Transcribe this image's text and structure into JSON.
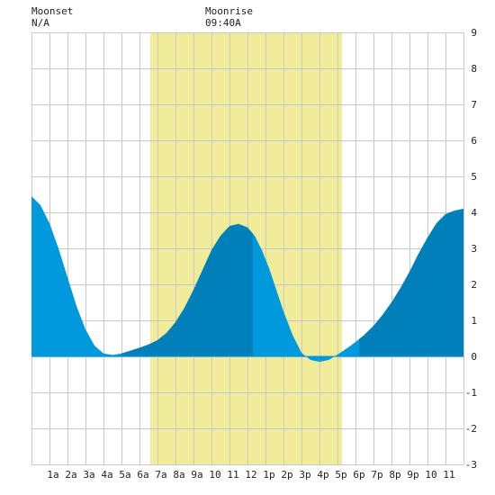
{
  "header": {
    "moonset_label": "Moonset",
    "moonset_value": "N/A",
    "moonrise_label": "Moonrise",
    "moonrise_value": "09:40A"
  },
  "colors": {
    "background": "#ffffff",
    "grid": "#c8c8c8",
    "daylight": "#f0ec9a",
    "tide_fill": "#0099dd",
    "tide_rising_fill": "#0080bb",
    "zero_line": "#0099dd"
  },
  "chart_data": {
    "type": "area",
    "title": "",
    "xlabel": "",
    "ylabel": "",
    "xlim": [
      0,
      24
    ],
    "ylim": [
      -3,
      9
    ],
    "x_ticks": [
      1,
      2,
      3,
      4,
      5,
      6,
      7,
      8,
      9,
      10,
      11,
      12,
      13,
      14,
      15,
      16,
      17,
      18,
      19,
      20,
      21,
      22,
      23
    ],
    "x_tick_labels": [
      "1a",
      "2a",
      "3a",
      "4a",
      "5a",
      "6a",
      "7a",
      "8a",
      "9a",
      "10",
      "11",
      "12",
      "1p",
      "2p",
      "3p",
      "4p",
      "5p",
      "6p",
      "7p",
      "8p",
      "9p",
      "10",
      "11"
    ],
    "y_ticks": [
      -3,
      -2,
      -1,
      0,
      1,
      2,
      3,
      4,
      5,
      6,
      7,
      8,
      9
    ],
    "y_tick_labels": [
      "-3",
      "-2",
      "-1",
      "0",
      "1",
      "2",
      "3",
      "4",
      "5",
      "6",
      "7",
      "8",
      "9"
    ],
    "y_axis_position": "right",
    "grid": true,
    "daylight": {
      "start": 6.6,
      "end": 17.25
    },
    "series": [
      {
        "x": [
          0.0,
          0.5,
          1.0,
          1.5,
          2.0,
          2.5,
          3.0,
          3.5,
          4.0,
          4.5,
          5.0,
          5.5,
          6.0,
          6.5,
          7.0,
          7.5,
          8.0,
          8.5,
          9.0,
          9.5,
          10.0,
          10.5,
          11.0,
          11.5,
          12.0,
          12.4,
          12.8,
          13.2,
          13.6,
          14.0,
          14.5,
          15.0,
          15.5,
          16.0,
          16.5,
          17.0,
          17.3,
          17.6,
          18.0,
          18.5,
          19.0,
          19.5,
          20.0,
          20.5,
          21.0,
          21.5,
          22.0,
          22.5,
          23.0,
          23.5,
          24.0
        ],
        "values": [
          4.45,
          4.2,
          3.7,
          3.0,
          2.2,
          1.4,
          0.75,
          0.3,
          0.08,
          0.04,
          0.08,
          0.16,
          0.24,
          0.33,
          0.45,
          0.65,
          0.95,
          1.35,
          1.85,
          2.4,
          2.95,
          3.35,
          3.62,
          3.68,
          3.58,
          3.35,
          2.95,
          2.45,
          1.85,
          1.25,
          0.6,
          0.1,
          -0.1,
          -0.15,
          -0.1,
          0.05,
          0.15,
          0.25,
          0.4,
          0.6,
          0.85,
          1.15,
          1.5,
          1.9,
          2.35,
          2.85,
          3.3,
          3.7,
          3.95,
          4.05,
          4.1
        ],
        "rising_segments": [
          [
            5.0,
            12.3
          ],
          [
            18.2,
            24.0
          ]
        ]
      }
    ]
  }
}
